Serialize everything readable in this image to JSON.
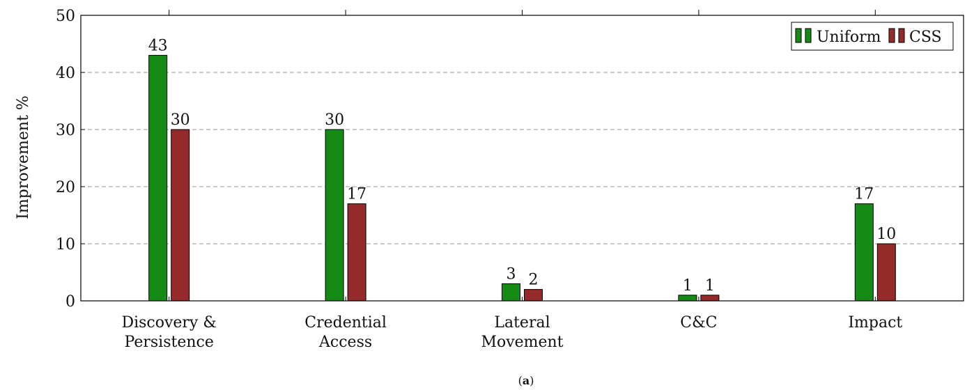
{
  "chart_data": {
    "type": "bar",
    "ylabel": "Improvement %",
    "xlabel": "",
    "ylim": [
      0,
      50
    ],
    "yticks": [
      0,
      10,
      20,
      30,
      40,
      50
    ],
    "grid": "horizontal-dashed",
    "legend_position": "top-right",
    "categories": [
      [
        "Discovery &",
        "Persistence"
      ],
      [
        "Credential",
        "Access"
      ],
      [
        "Lateral",
        "Movement"
      ],
      [
        "C&C"
      ],
      [
        "Impact"
      ]
    ],
    "series": [
      {
        "name": "Uniform",
        "color": "#158a15",
        "values": [
          43,
          30,
          3,
          1,
          17
        ]
      },
      {
        "name": "CSS",
        "color": "#952a2a",
        "values": [
          30,
          17,
          2,
          1,
          10
        ]
      }
    ],
    "caption": {
      "open": "(",
      "letter": "a",
      "close": ")"
    }
  }
}
